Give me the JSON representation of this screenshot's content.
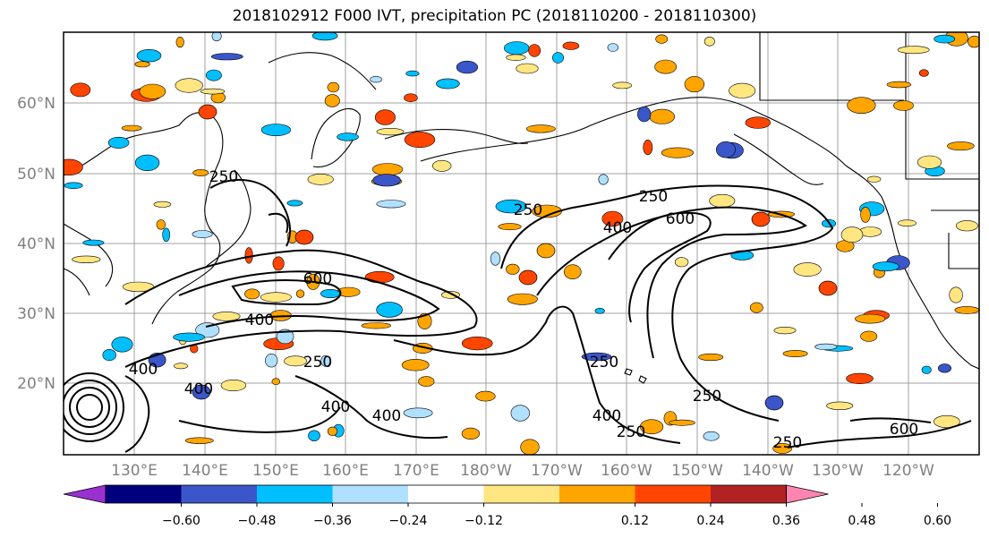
{
  "title": "2018102912 F000 IVT, precipitation PC (2018110200 - 2018110300)",
  "map": {
    "lat_ticks": [
      "60°N",
      "50°N",
      "40°N",
      "30°N",
      "20°N"
    ],
    "lon_ticks": [
      "130°E",
      "140°E",
      "150°E",
      "160°E",
      "170°E",
      "180°W",
      "170°W",
      "160°W",
      "150°W",
      "140°W",
      "130°W",
      "120°W"
    ],
    "ivt_contour_labels": [
      "250",
      "250",
      "250",
      "250",
      "250",
      "250",
      "250",
      "250",
      "400",
      "400",
      "400",
      "400",
      "400",
      "400",
      "400",
      "600",
      "600",
      "600"
    ]
  },
  "colorbar": {
    "ticks": [
      "−0.60",
      "−0.48",
      "−0.36",
      "−0.24",
      "−0.12",
      "0.12",
      "0.24",
      "0.36",
      "0.48",
      "0.60"
    ],
    "colors": [
      "#9b30d0",
      "#00007f",
      "#3a56c8",
      "#00bfff",
      "#b0e0ff",
      "#ffffff",
      "#ffe680",
      "#ffa500",
      "#ff4500",
      "#b22222",
      "#ff85b0"
    ]
  }
}
